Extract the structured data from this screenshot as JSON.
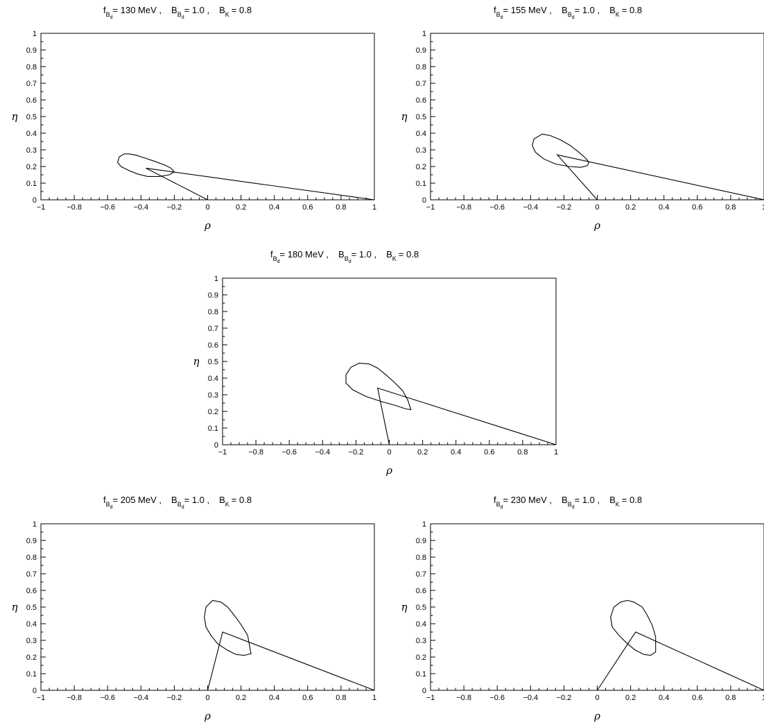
{
  "figure": {
    "common": {
      "ylabel": "η",
      "xlabel": "ρ",
      "xlim": [
        -1,
        1
      ],
      "ylim": [
        0,
        1
      ],
      "x_tick_labels": [
        "−1",
        "−0.8",
        "−0.6",
        "−0.4",
        "−0.2",
        "0",
        "0.2",
        "0.4",
        "0.6",
        "0.8",
        "1"
      ],
      "y_tick_labels": [
        "0",
        "0.1",
        "0.2",
        "0.3",
        "0.4",
        "0.5",
        "0.6",
        "0.7",
        "0.8",
        "0.9",
        "1"
      ]
    }
  },
  "chart_data": [
    {
      "type": "line",
      "title": {
        "f_sym": "f",
        "f_sub": "B",
        "f_subsub": "d",
        "f_value": "= 130 MeV ,",
        "b_sym": "B",
        "b_sub": "B",
        "b_subsub": "d",
        "b_value": "= 1.0 ,",
        "k_sym": "B",
        "k_sub": "K",
        "k_value": "= 0.8"
      },
      "xlabel": "ρ",
      "ylabel": "η",
      "xlim": [
        -1,
        1
      ],
      "ylim": [
        0,
        1
      ],
      "series": [
        {
          "kind": "contour",
          "x": [
            -0.5,
            -0.47,
            -0.43,
            -0.38,
            -0.32,
            -0.26,
            -0.22,
            -0.2,
            -0.23,
            -0.29,
            -0.36,
            -0.42,
            -0.47,
            -0.52,
            -0.54,
            -0.53,
            -0.5
          ],
          "y": [
            0.276,
            0.276,
            0.268,
            0.252,
            0.232,
            0.21,
            0.19,
            0.168,
            0.15,
            0.14,
            0.14,
            0.155,
            0.175,
            0.2,
            0.225,
            0.258,
            0.276
          ]
        },
        {
          "kind": "triangle",
          "x": [
            0,
            -0.37,
            1
          ],
          "y": [
            0,
            0.19,
            0
          ]
        }
      ]
    },
    {
      "type": "line",
      "title": {
        "f_sym": "f",
        "f_sub": "B",
        "f_subsub": "d",
        "f_value": "= 155 MeV ,",
        "b_sym": "B",
        "b_sub": "B",
        "b_subsub": "d",
        "b_value": "= 1.0 ,",
        "k_sym": "B",
        "k_sub": "K",
        "k_value": "= 0.8"
      },
      "xlabel": "ρ",
      "ylabel": "η",
      "xlim": [
        -1,
        1
      ],
      "ylim": [
        0,
        1
      ],
      "series": [
        {
          "kind": "contour",
          "x": [
            -0.33,
            -0.28,
            -0.22,
            -0.16,
            -0.11,
            -0.07,
            -0.05,
            -0.06,
            -0.1,
            -0.17,
            -0.25,
            -0.32,
            -0.37,
            -0.39,
            -0.38,
            -0.33
          ],
          "y": [
            0.395,
            0.385,
            0.36,
            0.325,
            0.285,
            0.25,
            0.225,
            0.205,
            0.195,
            0.2,
            0.215,
            0.245,
            0.285,
            0.325,
            0.365,
            0.395
          ]
        },
        {
          "kind": "triangle",
          "x": [
            0,
            -0.24,
            1
          ],
          "y": [
            0,
            0.27,
            0
          ]
        }
      ]
    },
    {
      "type": "line",
      "title": {
        "f_sym": "f",
        "f_sub": "B",
        "f_subsub": "d",
        "f_value": "= 180 MeV ,",
        "b_sym": "B",
        "b_sub": "B",
        "b_subsub": "d",
        "b_value": "= 1.0 ,",
        "k_sym": "B",
        "k_sub": "K",
        "k_value": "= 0.8"
      },
      "xlabel": "ρ",
      "ylabel": "η",
      "xlim": [
        -1,
        1
      ],
      "ylim": [
        0,
        1
      ],
      "series": [
        {
          "kind": "contour",
          "x": [
            -0.18,
            -0.12,
            -0.07,
            -0.02,
            0.03,
            0.08,
            0.11,
            0.13,
            0.1,
            0.04,
            -0.05,
            -0.14,
            -0.22,
            -0.26,
            -0.26,
            -0.23,
            -0.18
          ],
          "y": [
            0.49,
            0.485,
            0.46,
            0.42,
            0.375,
            0.325,
            0.27,
            0.21,
            0.215,
            0.235,
            0.26,
            0.29,
            0.33,
            0.37,
            0.42,
            0.465,
            0.49
          ]
        },
        {
          "kind": "triangle",
          "x": [
            0,
            -0.07,
            1
          ],
          "y": [
            0,
            0.34,
            0
          ]
        }
      ]
    },
    {
      "type": "line",
      "title": {
        "f_sym": "f",
        "f_sub": "B",
        "f_subsub": "d",
        "f_value": "= 205 MeV ,",
        "b_sym": "B",
        "b_sub": "B",
        "b_subsub": "d",
        "b_value": "= 1.0 ,",
        "k_sym": "B",
        "k_sub": "K",
        "k_value": "= 0.8"
      },
      "xlabel": "ρ",
      "ylabel": "η",
      "xlim": [
        -1,
        1
      ],
      "ylim": [
        0,
        1
      ],
      "series": [
        {
          "kind": "contour",
          "x": [
            0.03,
            0.08,
            0.12,
            0.16,
            0.2,
            0.24,
            0.26,
            0.22,
            0.17,
            0.12,
            0.06,
            0.02,
            -0.01,
            -0.02,
            -0.01,
            0.03
          ],
          "y": [
            0.54,
            0.53,
            0.5,
            0.45,
            0.395,
            0.33,
            0.22,
            0.21,
            0.215,
            0.24,
            0.28,
            0.33,
            0.38,
            0.44,
            0.5,
            0.54
          ]
        },
        {
          "kind": "triangle",
          "x": [
            0,
            0.09,
            1
          ],
          "y": [
            0,
            0.35,
            0
          ]
        }
      ]
    },
    {
      "type": "line",
      "title": {
        "f_sym": "f",
        "f_sub": "B",
        "f_subsub": "d",
        "f_value": "= 230 MeV ,",
        "b_sym": "B",
        "b_sub": "B",
        "b_subsub": "d",
        "b_value": "= 1.0 ,",
        "k_sym": "B",
        "k_sub": "K",
        "k_value": "= 0.8"
      },
      "xlabel": "ρ",
      "ylabel": "η",
      "xlim": [
        -1,
        1
      ],
      "ylim": [
        0,
        1
      ],
      "series": [
        {
          "kind": "contour",
          "x": [
            0.18,
            0.22,
            0.27,
            0.3,
            0.33,
            0.35,
            0.35,
            0.32,
            0.28,
            0.23,
            0.18,
            0.13,
            0.09,
            0.08,
            0.1,
            0.14,
            0.18
          ],
          "y": [
            0.54,
            0.53,
            0.5,
            0.45,
            0.39,
            0.32,
            0.23,
            0.21,
            0.215,
            0.24,
            0.28,
            0.33,
            0.38,
            0.44,
            0.5,
            0.53,
            0.54
          ]
        },
        {
          "kind": "triangle",
          "x": [
            0,
            0.23,
            1
          ],
          "y": [
            0,
            0.35,
            0
          ]
        }
      ]
    }
  ]
}
